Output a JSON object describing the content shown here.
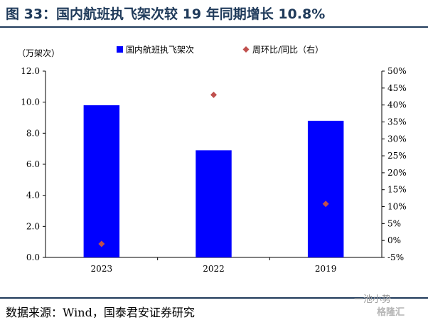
{
  "title": "图 33：国内航班执飞架次较 19 年同期增长 10.8%",
  "source": "数据来源：Wind，国泰君安证券研究",
  "watermark": {
    "top": "一池小势",
    "bottom": "格隆汇"
  },
  "colors": {
    "bar": "#0000ff",
    "marker": "#c0504d",
    "header": "#1f3a5a"
  },
  "chart_data": {
    "type": "bar",
    "unit_label": "（万架次）",
    "categories": [
      "2023",
      "2022",
      "2019"
    ],
    "series": [
      {
        "name": "国内航班执飞架次",
        "type": "bar",
        "axis": "left",
        "values": [
          9.8,
          6.9,
          8.8
        ]
      },
      {
        "name": "周环比/同比（右）",
        "type": "scatter",
        "axis": "right",
        "values": [
          -0.01,
          0.43,
          0.108
        ]
      }
    ],
    "y_left": {
      "lim": [
        0,
        12
      ],
      "ticks": [
        "0.0",
        "2.0",
        "4.0",
        "6.0",
        "8.0",
        "10.0",
        "12.0"
      ]
    },
    "y_right": {
      "lim": [
        -0.05,
        0.5
      ],
      "ticks": [
        "-5%",
        "0%",
        "5%",
        "10%",
        "15%",
        "20%",
        "25%",
        "30%",
        "35%",
        "40%",
        "45%",
        "50%"
      ]
    },
    "grid": false,
    "legend": "top"
  }
}
